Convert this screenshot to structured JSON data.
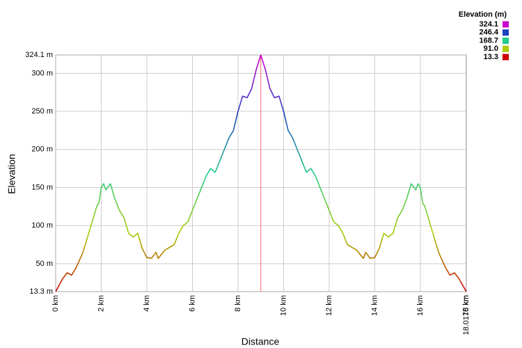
{
  "chart_data": {
    "type": "line",
    "x_label": "Distance",
    "y_label": "Elevation",
    "legend": {
      "title": "Elevation (m)",
      "items": [
        {
          "label": "324.1",
          "color": "#cc00cc"
        },
        {
          "label": "246.4",
          "color": "#1f3fbf"
        },
        {
          "label": "168.7",
          "color": "#22cc88"
        },
        {
          "label": "91.0",
          "color": "#aacc00"
        },
        {
          "label": "13.3",
          "color": "#cc0000"
        }
      ]
    },
    "x": [
      0,
      0.3,
      0.5,
      0.7,
      0.9,
      1.2,
      1.4,
      1.6,
      1.8,
      1.9,
      2.0,
      2.1,
      2.2,
      2.4,
      2.6,
      2.8,
      3.0,
      3.2,
      3.4,
      3.6,
      3.8,
      4.0,
      4.2,
      4.4,
      4.5,
      4.8,
      5.2,
      5.4,
      5.6,
      5.8,
      6.0,
      6.2,
      6.4,
      6.6,
      6.8,
      7.0,
      7.2,
      7.4,
      7.6,
      7.8,
      8.0,
      8.2,
      8.4,
      8.6,
      8.8,
      9.0,
      9.2,
      9.4,
      9.6,
      9.8,
      10.0,
      10.2,
      10.4,
      10.6,
      10.8,
      11.0,
      11.2,
      11.4,
      11.6,
      11.8,
      12.0,
      12.2,
      12.4,
      12.6,
      12.8,
      13.2,
      13.5,
      13.6,
      13.8,
      14.0,
      14.2,
      14.4,
      14.6,
      14.8,
      15.0,
      15.2,
      15.4,
      15.6,
      15.8,
      15.9,
      16.0,
      16.1,
      16.2,
      16.4,
      16.6,
      16.8,
      17.1,
      17.3,
      17.5,
      17.7,
      18.0176
    ],
    "values": [
      13.3,
      30,
      38,
      35,
      45,
      65,
      85,
      105,
      125,
      130,
      150,
      155,
      147,
      155,
      135,
      120,
      110,
      90,
      85,
      90,
      70,
      58,
      57,
      65,
      57,
      68,
      75,
      90,
      100,
      105,
      120,
      135,
      150,
      165,
      175,
      170,
      185,
      200,
      215,
      225,
      250,
      270,
      268,
      280,
      305,
      324.1,
      305,
      280,
      268,
      270,
      250,
      225,
      215,
      200,
      185,
      170,
      175,
      165,
      150,
      135,
      120,
      105,
      100,
      90,
      75,
      68,
      57,
      65,
      57,
      58,
      70,
      90,
      85,
      90,
      110,
      120,
      135,
      155,
      147,
      155,
      150,
      130,
      125,
      105,
      85,
      65,
      45,
      35,
      38,
      30,
      13.3
    ],
    "cursor_x": 9.0,
    "cursor_color": "#ff6666",
    "xlim": [
      0,
      18.0176
    ],
    "ylim": [
      13.3,
      324.1
    ],
    "xticks": [
      {
        "value": 0,
        "label": "0 km"
      },
      {
        "value": 2,
        "label": "2 km"
      },
      {
        "value": 4,
        "label": "4 km"
      },
      {
        "value": 6,
        "label": "6 km"
      },
      {
        "value": 8,
        "label": "8 km"
      },
      {
        "value": 10,
        "label": "10 km"
      },
      {
        "value": 12,
        "label": "12 km"
      },
      {
        "value": 14,
        "label": "14 km"
      },
      {
        "value": 16,
        "label": "16 km"
      },
      {
        "value": 18,
        "label": "18 km"
      },
      {
        "value": 18.0176,
        "label": "18.0176 km"
      }
    ],
    "yticks": [
      {
        "value": 13.3,
        "label": "13.3 m"
      },
      {
        "value": 50,
        "label": "50 m"
      },
      {
        "value": 100,
        "label": "100 m"
      },
      {
        "value": 150,
        "label": "150 m"
      },
      {
        "value": 200,
        "label": "200 m"
      },
      {
        "value": 250,
        "label": "250 m"
      },
      {
        "value": 300,
        "label": "300 m"
      },
      {
        "value": 324.1,
        "label": "324.1 m"
      }
    ],
    "grid": true
  }
}
